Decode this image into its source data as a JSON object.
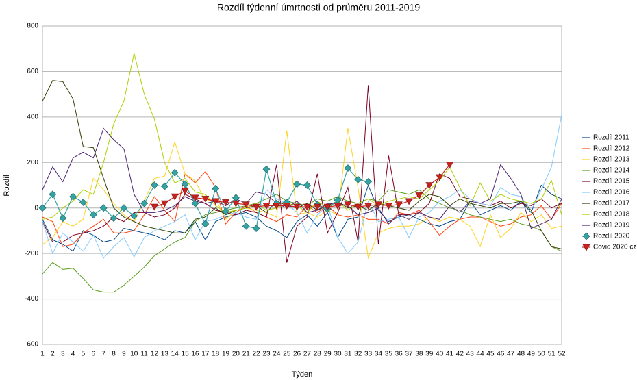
{
  "chart_data": {
    "type": "line",
    "title": "Rozdíl týdenní úmrtnosti od průměru 2011-2019",
    "x_label": "Týden",
    "y_label": "Rozdíl",
    "categories": [
      1,
      2,
      3,
      4,
      5,
      6,
      7,
      8,
      9,
      10,
      11,
      12,
      13,
      14,
      15,
      16,
      17,
      18,
      19,
      20,
      21,
      22,
      23,
      24,
      25,
      26,
      27,
      28,
      29,
      30,
      31,
      32,
      33,
      34,
      35,
      36,
      37,
      38,
      39,
      40,
      41,
      42,
      43,
      44,
      45,
      46,
      47,
      48,
      49,
      50,
      51,
      52
    ],
    "ylim": [
      -600,
      800
    ],
    "yticks": [
      -600,
      -400,
      -200,
      0,
      200,
      400,
      600,
      800
    ],
    "grid": true,
    "legend": "right",
    "series": [
      {
        "name": "Rozdíl 2011",
        "color": "#004586",
        "values": [
          -50,
          -140,
          -160,
          -190,
          -100,
          -120,
          -150,
          -140,
          -90,
          -100,
          -110,
          -120,
          -140,
          -100,
          -110,
          -60,
          -140,
          -60,
          -40,
          -30,
          -20,
          -40,
          -80,
          -100,
          -130,
          -60,
          -30,
          -80,
          -20,
          -130,
          -50,
          -40,
          100,
          -10,
          -60,
          -40,
          -30,
          -50,
          -70,
          -80,
          -60,
          -50,
          30,
          -30,
          -10,
          10,
          -10,
          30,
          -20,
          100,
          60,
          40
        ]
      },
      {
        "name": "Rozdíl 2012",
        "color": "#ff420e",
        "values": [
          -40,
          -60,
          -170,
          -160,
          -110,
          -80,
          -50,
          -110,
          -110,
          -100,
          -30,
          50,
          -10,
          -60,
          150,
          110,
          160,
          90,
          -70,
          -20,
          10,
          -20,
          -40,
          -60,
          -30,
          -40,
          10,
          -20,
          10,
          -30,
          -40,
          -30,
          -50,
          -50,
          -70,
          -20,
          -30,
          -10,
          -60,
          -120,
          -80,
          -50,
          -40,
          -40,
          -60,
          -80,
          -70,
          -40,
          -30,
          10,
          -50,
          20
        ]
      },
      {
        "name": "Rozdíl 2013",
        "color": "#ffd320",
        "values": [
          -160,
          -130,
          -60,
          -80,
          -50,
          130,
          80,
          20,
          -30,
          -60,
          30,
          130,
          140,
          290,
          150,
          120,
          30,
          40,
          -50,
          -10,
          0,
          -10,
          -20,
          -40,
          340,
          -30,
          -20,
          -40,
          -10,
          -30,
          350,
          90,
          -220,
          -110,
          -90,
          -80,
          -80,
          -70,
          -40,
          -60,
          -40,
          -50,
          -80,
          -170,
          -30,
          -130,
          -90,
          -20,
          -60,
          -30,
          -90,
          -80
        ]
      },
      {
        "name": "Rozdíl 2014",
        "color": "#579d1c",
        "values": [
          -290,
          -240,
          -270,
          -265,
          -310,
          -360,
          -370,
          -370,
          -340,
          -300,
          -260,
          -210,
          -180,
          -150,
          -130,
          -60,
          -30,
          -20,
          -10,
          0,
          10,
          20,
          40,
          60,
          30,
          20,
          10,
          40,
          30,
          50,
          30,
          20,
          40,
          30,
          80,
          70,
          60,
          80,
          40,
          20,
          0,
          -10,
          -30,
          -40,
          -50,
          -60,
          -50,
          -70,
          -80,
          -100,
          -170,
          -190
        ]
      },
      {
        "name": "Rozdíl 2015",
        "color": "#7e0021",
        "values": [
          -60,
          -150,
          -150,
          -120,
          -110,
          -100,
          -80,
          -40,
          -60,
          -20,
          -20,
          -40,
          -30,
          0,
          60,
          40,
          20,
          -10,
          -20,
          -30,
          -10,
          -20,
          -40,
          190,
          -240,
          -80,
          -40,
          150,
          -110,
          -20,
          90,
          -150,
          540,
          -160,
          230,
          -30,
          -30,
          -20,
          20,
          150,
          130,
          50,
          40,
          20,
          10,
          30,
          0,
          20,
          10,
          40,
          0,
          20
        ]
      },
      {
        "name": "Rozdíl 2016",
        "color": "#83caff",
        "values": [
          -60,
          -200,
          -110,
          -150,
          -190,
          -120,
          -220,
          -170,
          -130,
          -215,
          -130,
          -100,
          -80,
          -60,
          -30,
          -140,
          -60,
          -50,
          -30,
          -20,
          -40,
          -50,
          80,
          40,
          20,
          -20,
          -110,
          -30,
          10,
          -130,
          -200,
          -150,
          30,
          -60,
          -50,
          -40,
          -130,
          -40,
          -20,
          30,
          50,
          80,
          40,
          20,
          10,
          90,
          60,
          50,
          -10,
          80,
          180,
          410
        ]
      },
      {
        "name": "Rozdíl 2017",
        "color": "#314004",
        "values": [
          470,
          560,
          555,
          480,
          270,
          265,
          130,
          0,
          -40,
          -60,
          -80,
          -90,
          -100,
          -110,
          -110,
          -50,
          -40,
          0,
          -30,
          -10,
          0,
          10,
          -20,
          30,
          10,
          0,
          20,
          -10,
          10,
          30,
          0,
          10,
          -10,
          20,
          10,
          0,
          -10,
          30,
          60,
          50,
          10,
          40,
          20,
          10,
          0,
          20,
          20,
          30,
          -10,
          -100,
          -170,
          -180
        ]
      },
      {
        "name": "Rozdíl 2018",
        "color": "#aecf00",
        "values": [
          -50,
          -40,
          0,
          30,
          80,
          60,
          200,
          370,
          470,
          680,
          500,
          390,
          200,
          110,
          130,
          70,
          60,
          10,
          -20,
          -10,
          0,
          20,
          -10,
          0,
          20,
          10,
          -20,
          30,
          0,
          30,
          -10,
          20,
          40,
          10,
          30,
          40,
          50,
          40,
          80,
          120,
          180,
          90,
          10,
          110,
          30,
          60,
          40,
          30,
          20,
          40,
          120,
          -30
        ]
      },
      {
        "name": "Rozdíl 2019",
        "color": "#4b1f6f",
        "values": [
          80,
          180,
          115,
          220,
          245,
          220,
          350,
          300,
          260,
          60,
          -20,
          -20,
          -10,
          10,
          50,
          30,
          20,
          30,
          10,
          40,
          20,
          70,
          60,
          20,
          0,
          30,
          -20,
          -10,
          20,
          20,
          10,
          -30,
          -20,
          0,
          -70,
          -30,
          -50,
          -20,
          -40,
          -50,
          10,
          -20,
          30,
          20,
          40,
          190,
          130,
          60,
          -90,
          -70,
          -50,
          40
        ]
      },
      {
        "name": "Rozdíl 2020",
        "color": "#33a3a3",
        "marker": "diamond",
        "values": [
          0,
          60,
          -45,
          50,
          25,
          -30,
          0,
          -45,
          0,
          -35,
          20,
          100,
          95,
          155,
          105,
          20,
          -70,
          85,
          -15,
          45,
          -80,
          -90,
          170,
          20,
          25,
          105,
          100,
          15,
          -5,
          35,
          175,
          125,
          115,
          null,
          null,
          null,
          null,
          null,
          null,
          null,
          null,
          null,
          null,
          null,
          null,
          null,
          null,
          null,
          null,
          null,
          null,
          null
        ]
      },
      {
        "name": "Covid 2020 cz",
        "color": "#c9211e",
        "marker": "triangle-down",
        "values": [
          null,
          null,
          null,
          null,
          null,
          null,
          null,
          null,
          null,
          null,
          null,
          5,
          20,
          50,
          75,
          45,
          40,
          30,
          25,
          20,
          15,
          5,
          10,
          10,
          10,
          5,
          5,
          5,
          5,
          10,
          15,
          5,
          10,
          15,
          10,
          15,
          30,
          55,
          100,
          135,
          190,
          null,
          null,
          null,
          null,
          null,
          null,
          null,
          null,
          null,
          null,
          null
        ]
      }
    ]
  }
}
